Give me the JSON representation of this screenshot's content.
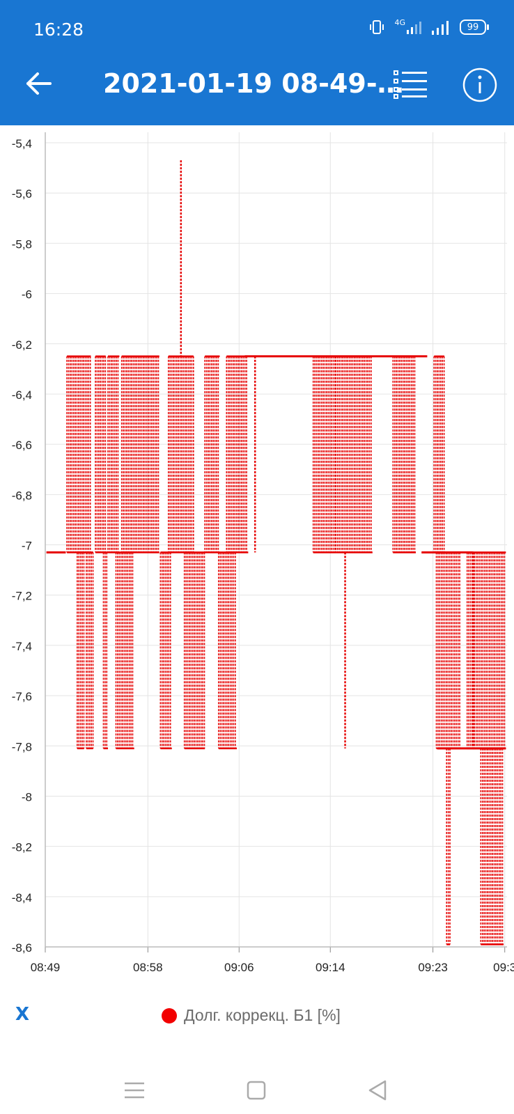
{
  "status_bar": {
    "time": "16:28",
    "network": "4G",
    "battery": "99",
    "icons": [
      "vibrate-icon",
      "signal-4g-icon",
      "signal-icon",
      "battery-icon"
    ]
  },
  "app_bar": {
    "title": "2021-01-19 08-49-…",
    "back_icon": "arrow-left-icon",
    "list_icon": "list-icon",
    "info_icon": "info-icon"
  },
  "chart_data": {
    "type": "line",
    "title": "",
    "xlabel": "X",
    "ylabel": "",
    "x_tick_labels": [
      "08:49",
      "08:58",
      "09:06",
      "09:14",
      "09:23",
      "09:3"
    ],
    "x_range_minutes": [
      0,
      40.5
    ],
    "y_tick_labels": [
      "-5,4",
      "-5,6",
      "-5,8",
      "-6",
      "-6,2",
      "-6,4",
      "-6,6",
      "-6,8",
      "-7",
      "-7,2",
      "-7,4",
      "-7,6",
      "-7,8",
      "-8",
      "-8,2",
      "-8,4",
      "-8,6"
    ],
    "ylim": [
      -8.6,
      -5.4
    ],
    "grid": true,
    "legend_position": "bottom",
    "series": [
      {
        "name": "Долг. коррекц. Б1 [%]",
        "color": "#e60000",
        "levels": [
          -5.47,
          -6.25,
          -7.03,
          -7.81,
          -8.59
        ],
        "baseline_segments": [
          {
            "x0": 0.1,
            "x1": 1.8,
            "y": -7.03
          },
          {
            "x0": 17.5,
            "x1": 33.5,
            "y": -6.25
          },
          {
            "x0": 34.4,
            "x1": 40.4,
            "y": -7.81
          },
          {
            "x0": 33.0,
            "x1": 37.5,
            "y": -7.03
          }
        ],
        "oscillation_bands": [
          {
            "x0": 1.9,
            "x1": 4.0,
            "top": -6.25,
            "bottom": -7.03
          },
          {
            "x0": 2.8,
            "x1": 3.4,
            "top": -7.03,
            "bottom": -7.81
          },
          {
            "x0": 3.6,
            "x1": 4.2,
            "top": -7.03,
            "bottom": -7.81
          },
          {
            "x0": 4.4,
            "x1": 5.3,
            "top": -6.25,
            "bottom": -7.03
          },
          {
            "x0": 5.5,
            "x1": 6.5,
            "top": -6.25,
            "bottom": -7.03
          },
          {
            "x0": 5.1,
            "x1": 5.5,
            "top": -7.03,
            "bottom": -7.81
          },
          {
            "x0": 6.7,
            "x1": 10.0,
            "top": -6.25,
            "bottom": -7.03
          },
          {
            "x0": 6.2,
            "x1": 7.8,
            "top": -7.03,
            "bottom": -7.81
          },
          {
            "x0": 10.1,
            "x1": 11.1,
            "top": -7.03,
            "bottom": -7.81
          },
          {
            "x0": 10.8,
            "x1": 13.0,
            "top": -6.25,
            "bottom": -7.03
          },
          {
            "x0": 12.2,
            "x1": 14.0,
            "top": -7.03,
            "bottom": -7.81
          },
          {
            "x0": 14.0,
            "x1": 15.3,
            "top": -6.25,
            "bottom": -7.03
          },
          {
            "x0": 15.2,
            "x1": 16.8,
            "top": -7.03,
            "bottom": -7.81
          },
          {
            "x0": 15.9,
            "x1": 17.8,
            "top": -6.25,
            "bottom": -7.03
          },
          {
            "x0": 23.5,
            "x1": 25.5,
            "top": -6.25,
            "bottom": -7.03
          },
          {
            "x0": 25.5,
            "x1": 28.7,
            "top": -6.25,
            "bottom": -7.03
          },
          {
            "x0": 30.5,
            "x1": 32.5,
            "top": -6.25,
            "bottom": -7.03
          },
          {
            "x0": 34.1,
            "x1": 35.0,
            "top": -6.25,
            "bottom": -7.03
          },
          {
            "x0": 34.3,
            "x1": 36.4,
            "top": -7.03,
            "bottom": -7.81
          },
          {
            "x0": 35.2,
            "x1": 35.5,
            "top": -7.81,
            "bottom": -8.59
          },
          {
            "x0": 37.0,
            "x1": 37.6,
            "top": -7.03,
            "bottom": -7.81
          },
          {
            "x0": 37.5,
            "x1": 40.4,
            "top": -7.03,
            "bottom": -7.81
          },
          {
            "x0": 38.2,
            "x1": 40.2,
            "top": -7.81,
            "bottom": -8.59
          }
        ],
        "spikes": [
          {
            "x": 11.9,
            "top": -5.47,
            "bottom": -6.25
          },
          {
            "x": 26.3,
            "top": -7.03,
            "bottom": -7.81
          },
          {
            "x": 18.4,
            "top": -6.25,
            "bottom": -7.03
          }
        ]
      }
    ]
  },
  "legend": {
    "axis_title": "X",
    "series_label": "Долг. коррекц. Б1 [%]",
    "dot_color": "#f20000"
  },
  "nav_bar": {
    "menu_icon": "menu-icon",
    "home_icon": "home-square-icon",
    "back_icon": "back-triangle-icon"
  }
}
